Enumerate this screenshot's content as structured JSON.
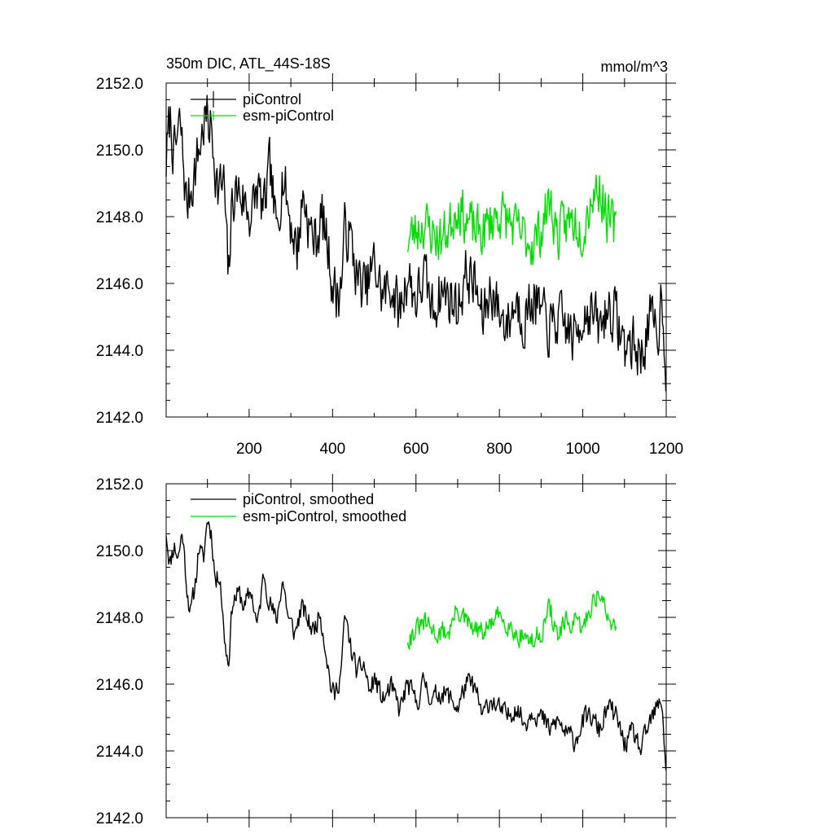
{
  "chart_data": [
    {
      "type": "line",
      "title": "350m DIC, ATL_44S-18S",
      "units": "mmol/m^3",
      "xlim": [
        1,
        1200
      ],
      "ylim": [
        2142.0,
        2152.0
      ],
      "x_ticks": [
        200,
        400,
        600,
        800,
        1000,
        1200
      ],
      "x_tick_labels": [
        "200",
        "400",
        "600",
        "800",
        "1000",
        "1200"
      ],
      "y_ticks": [
        2142.0,
        2144.0,
        2146.0,
        2148.0,
        2150.0,
        2152.0
      ],
      "y_tick_labels": [
        "2142.0",
        "2144.0",
        "2146.0",
        "2148.0",
        "2150.0",
        "2152.0"
      ],
      "legend": {
        "position": "top-left",
        "entries": [
          "piControl",
          "esm-piControl"
        ]
      },
      "series": [
        {
          "name": "piControl",
          "color": "#000000",
          "x_start": 1,
          "x_end": 1200,
          "points": [
            [
              1,
              2149.6
            ],
            [
              10,
              2151.0
            ],
            [
              20,
              2149.8
            ],
            [
              35,
              2150.8
            ],
            [
              50,
              2148.3
            ],
            [
              65,
              2149.1
            ],
            [
              80,
              2150.0
            ],
            [
              95,
              2151.0
            ],
            [
              110,
              2150.6
            ],
            [
              125,
              2148.8
            ],
            [
              140,
              2149.0
            ],
            [
              150,
              2146.0
            ],
            [
              160,
              2148.6
            ],
            [
              175,
              2148.8
            ],
            [
              190,
              2148.4
            ],
            [
              205,
              2148.0
            ],
            [
              220,
              2148.9
            ],
            [
              235,
              2148.1
            ],
            [
              250,
              2149.5
            ],
            [
              265,
              2147.5
            ],
            [
              280,
              2149.3
            ],
            [
              300,
              2147.8
            ],
            [
              315,
              2147.0
            ],
            [
              330,
              2148.7
            ],
            [
              345,
              2147.6
            ],
            [
              360,
              2147.3
            ],
            [
              375,
              2148.0
            ],
            [
              390,
              2147.0
            ],
            [
              400,
              2146.0
            ],
            [
              410,
              2145.6
            ],
            [
              420,
              2145.9
            ],
            [
              430,
              2147.7
            ],
            [
              445,
              2147.2
            ],
            [
              460,
              2146.1
            ],
            [
              480,
              2145.8
            ],
            [
              500,
              2146.6
            ],
            [
              520,
              2145.6
            ],
            [
              540,
              2146.0
            ],
            [
              560,
              2145.1
            ],
            [
              580,
              2146.3
            ],
            [
              600,
              2145.5
            ],
            [
              620,
              2146.2
            ],
            [
              640,
              2145.2
            ],
            [
              660,
              2145.8
            ],
            [
              680,
              2145.6
            ],
            [
              700,
              2145.3
            ],
            [
              720,
              2146.3
            ],
            [
              740,
              2146.0
            ],
            [
              760,
              2144.9
            ],
            [
              780,
              2145.9
            ],
            [
              800,
              2145.1
            ],
            [
              820,
              2144.8
            ],
            [
              840,
              2145.5
            ],
            [
              860,
              2144.9
            ],
            [
              880,
              2145.6
            ],
            [
              900,
              2145.1
            ],
            [
              920,
              2144.6
            ],
            [
              940,
              2144.9
            ],
            [
              960,
              2144.7
            ],
            [
              980,
              2144.3
            ],
            [
              1000,
              2145.1
            ],
            [
              1020,
              2145.2
            ],
            [
              1040,
              2144.6
            ],
            [
              1060,
              2145.3
            ],
            [
              1080,
              2145.0
            ],
            [
              1100,
              2144.1
            ],
            [
              1120,
              2144.2
            ],
            [
              1140,
              2143.8
            ],
            [
              1160,
              2144.9
            ],
            [
              1180,
              2144.5
            ],
            [
              1190,
              2145.8
            ],
            [
              1200,
              2143.3
            ]
          ],
          "noise": 1.1,
          "seed": 7
        },
        {
          "name": "esm-piControl",
          "color": "#00dd00",
          "x_start": 580,
          "x_end": 1080,
          "points": [
            [
              580,
              2147.3
            ],
            [
              600,
              2147.6
            ],
            [
              620,
              2147.8
            ],
            [
              640,
              2147.5
            ],
            [
              660,
              2147.3
            ],
            [
              680,
              2147.7
            ],
            [
              700,
              2148.4
            ],
            [
              720,
              2147.9
            ],
            [
              740,
              2147.6
            ],
            [
              760,
              2147.5
            ],
            [
              780,
              2147.9
            ],
            [
              800,
              2148.1
            ],
            [
              820,
              2147.9
            ],
            [
              840,
              2147.6
            ],
            [
              860,
              2147.4
            ],
            [
              880,
              2147.2
            ],
            [
              900,
              2147.6
            ],
            [
              920,
              2148.5
            ],
            [
              940,
              2147.4
            ],
            [
              960,
              2147.8
            ],
            [
              980,
              2147.9
            ],
            [
              1000,
              2147.6
            ],
            [
              1020,
              2148.6
            ],
            [
              1040,
              2148.9
            ],
            [
              1060,
              2147.9
            ],
            [
              1080,
              2147.6
            ]
          ],
          "noise": 1.0,
          "seed": 23
        }
      ]
    },
    {
      "type": "line",
      "title": "",
      "xlim": [
        1,
        1200
      ],
      "ylim": [
        2142.0,
        2152.0
      ],
      "y_ticks": [
        2142.0,
        2144.0,
        2146.0,
        2148.0,
        2150.0,
        2152.0
      ],
      "y_tick_labels": [
        "2142.0",
        "2144.0",
        "2146.0",
        "2148.0",
        "2150.0",
        "2152.0"
      ],
      "legend": {
        "position": "top-left",
        "entries": [
          "piControl, smoothed",
          "esm-piControl, smoothed"
        ]
      },
      "series": [
        {
          "name": "piControl, smoothed",
          "color": "#000000",
          "x_start": 1,
          "x_end": 1200,
          "points": [
            [
              1,
              2150.6
            ],
            [
              10,
              2149.6
            ],
            [
              20,
              2150.2
            ],
            [
              30,
              2149.8
            ],
            [
              40,
              2150.6
            ],
            [
              50,
              2149.0
            ],
            [
              60,
              2148.1
            ],
            [
              70,
              2148.9
            ],
            [
              80,
              2150.2
            ],
            [
              90,
              2149.6
            ],
            [
              100,
              2151.0
            ],
            [
              110,
              2150.5
            ],
            [
              120,
              2149.0
            ],
            [
              130,
              2149.4
            ],
            [
              140,
              2147.5
            ],
            [
              150,
              2146.6
            ],
            [
              160,
              2148.5
            ],
            [
              175,
              2148.7
            ],
            [
              190,
              2148.3
            ],
            [
              205,
              2148.8
            ],
            [
              220,
              2147.7
            ],
            [
              235,
              2149.3
            ],
            [
              250,
              2148.5
            ],
            [
              265,
              2147.8
            ],
            [
              280,
              2149.2
            ],
            [
              295,
              2147.9
            ],
            [
              310,
              2147.5
            ],
            [
              325,
              2148.3
            ],
            [
              340,
              2147.9
            ],
            [
              355,
              2147.6
            ],
            [
              370,
              2148.2
            ],
            [
              385,
              2147.0
            ],
            [
              395,
              2146.0
            ],
            [
              405,
              2145.6
            ],
            [
              420,
              2146.4
            ],
            [
              430,
              2148.0
            ],
            [
              445,
              2147.0
            ],
            [
              460,
              2146.3
            ],
            [
              475,
              2146.6
            ],
            [
              490,
              2145.7
            ],
            [
              500,
              2146.2
            ],
            [
              520,
              2145.5
            ],
            [
              540,
              2145.9
            ],
            [
              560,
              2145.2
            ],
            [
              580,
              2146.0
            ],
            [
              600,
              2145.4
            ],
            [
              620,
              2146.1
            ],
            [
              640,
              2145.5
            ],
            [
              660,
              2145.8
            ],
            [
              680,
              2145.6
            ],
            [
              700,
              2145.3
            ],
            [
              720,
              2146.0
            ],
            [
              740,
              2145.9
            ],
            [
              760,
              2145.0
            ],
            [
              780,
              2145.6
            ],
            [
              800,
              2145.2
            ],
            [
              820,
              2145.0
            ],
            [
              840,
              2145.4
            ],
            [
              860,
              2144.8
            ],
            [
              880,
              2145.3
            ],
            [
              900,
              2145.0
            ],
            [
              920,
              2144.6
            ],
            [
              940,
              2144.9
            ],
            [
              960,
              2144.5
            ],
            [
              980,
              2144.3
            ],
            [
              1000,
              2144.9
            ],
            [
              1020,
              2145.0
            ],
            [
              1040,
              2144.6
            ],
            [
              1060,
              2145.3
            ],
            [
              1080,
              2145.0
            ],
            [
              1100,
              2144.2
            ],
            [
              1120,
              2144.5
            ],
            [
              1140,
              2144.0
            ],
            [
              1160,
              2144.8
            ],
            [
              1180,
              2145.3
            ],
            [
              1190,
              2145.5
            ],
            [
              1200,
              2143.3
            ]
          ],
          "noise": 0.55,
          "seed": 11
        },
        {
          "name": "esm-piControl, smoothed",
          "color": "#00dd00",
          "x_start": 580,
          "x_end": 1080,
          "points": [
            [
              580,
              2147.4
            ],
            [
              600,
              2147.6
            ],
            [
              620,
              2147.8
            ],
            [
              640,
              2147.6
            ],
            [
              660,
              2147.5
            ],
            [
              680,
              2147.6
            ],
            [
              700,
              2148.3
            ],
            [
              720,
              2147.8
            ],
            [
              740,
              2147.6
            ],
            [
              760,
              2147.5
            ],
            [
              780,
              2147.8
            ],
            [
              800,
              2148.0
            ],
            [
              820,
              2147.9
            ],
            [
              840,
              2147.5
            ],
            [
              860,
              2147.5
            ],
            [
              880,
              2147.2
            ],
            [
              900,
              2147.6
            ],
            [
              920,
              2148.3
            ],
            [
              940,
              2147.4
            ],
            [
              960,
              2147.8
            ],
            [
              980,
              2147.8
            ],
            [
              1000,
              2147.6
            ],
            [
              1020,
              2148.4
            ],
            [
              1040,
              2148.8
            ],
            [
              1060,
              2147.9
            ],
            [
              1080,
              2147.8
            ]
          ],
          "noise": 0.55,
          "seed": 31
        }
      ]
    }
  ]
}
